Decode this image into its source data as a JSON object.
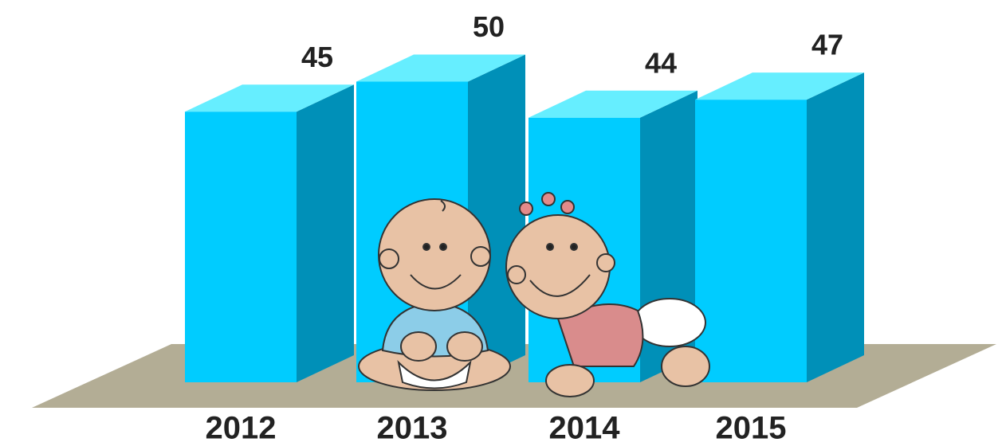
{
  "chart_data": {
    "type": "bar3d",
    "categories": [
      "2012",
      "2013",
      "2014",
      "2015"
    ],
    "values": [
      45,
      50,
      44,
      47
    ],
    "colors": {
      "front": "#00ccff",
      "side": "#0090b8",
      "top": "#66eeff",
      "floor": "#b3ad95"
    }
  }
}
